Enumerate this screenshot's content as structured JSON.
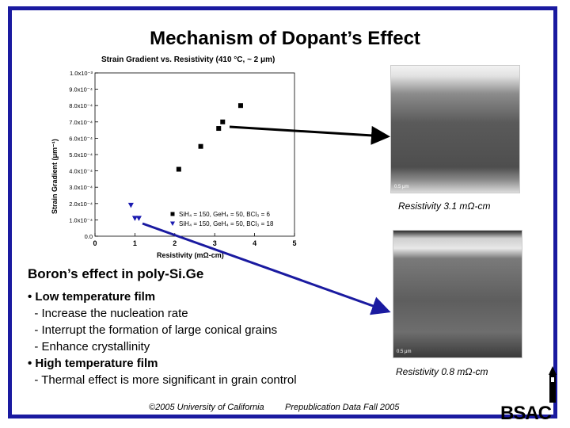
{
  "slide": {
    "title": "Mechanism of Dopant’s Effect",
    "heading": "Boron’s effect in poly-Si.Ge",
    "bullet1": "• Low temperature film",
    "sub1a": "  - Increase the nucleation rate",
    "sub1b": "  - Interrupt the formation of large conical grains",
    "sub1c": "  - Enhance crystallinity",
    "bullet2": "• High temperature film",
    "sub2a": "  - Thermal effect is more significant in grain control",
    "resistivity_top": "Resistivity 3.1 mΩ-cm",
    "resistivity_bottom": "Resistivity 0.8 mΩ-cm",
    "footer_left": "©2005 University of California",
    "footer_right": "Prepublication Data Fall 2005",
    "logo": "BSAC",
    "tem_scale": "0.5 μm"
  },
  "chart_data": {
    "type": "scatter",
    "title": "Strain Gradient vs. Resistivity (410 °C, ~ 2 μm)",
    "xlabel": "Resistivity (mΩ-cm)",
    "ylabel": "Strain Gradient (μm⁻¹)",
    "xlim": [
      0,
      5
    ],
    "ylim": [
      0,
      0.001
    ],
    "x_ticks": [
      "0",
      "1",
      "2",
      "3",
      "4",
      "5"
    ],
    "y_ticks": [
      "0.0",
      "1.0x10⁻⁴",
      "2.0x10⁻⁴",
      "3.0x10⁻⁴",
      "4.0x10⁻⁴",
      "5.0x10⁻⁴",
      "6.0x10⁻⁴",
      "7.0x10⁻⁴",
      "8.0x10⁻⁴",
      "9.0x10⁻⁴",
      "1.0x10⁻³"
    ],
    "legend_position": "bottom-right",
    "series": [
      {
        "name": "SiH₄ = 150, GeH₄ = 50, BCl₃ = 6",
        "marker": "square",
        "color": "#000000",
        "x": [
          2.1,
          2.65,
          3.1,
          3.2,
          3.65
        ],
        "y": [
          0.00041,
          0.00055,
          0.00066,
          0.0007,
          0.0008
        ]
      },
      {
        "name": "SiH₄ = 150, GeH₄ = 50, BCl₃ = 18",
        "marker": "triangle-down",
        "color": "#1a1ab0",
        "x": [
          0.9,
          1.0,
          1.1
        ],
        "y": [
          0.00019,
          0.00011,
          0.00011
        ]
      }
    ]
  }
}
